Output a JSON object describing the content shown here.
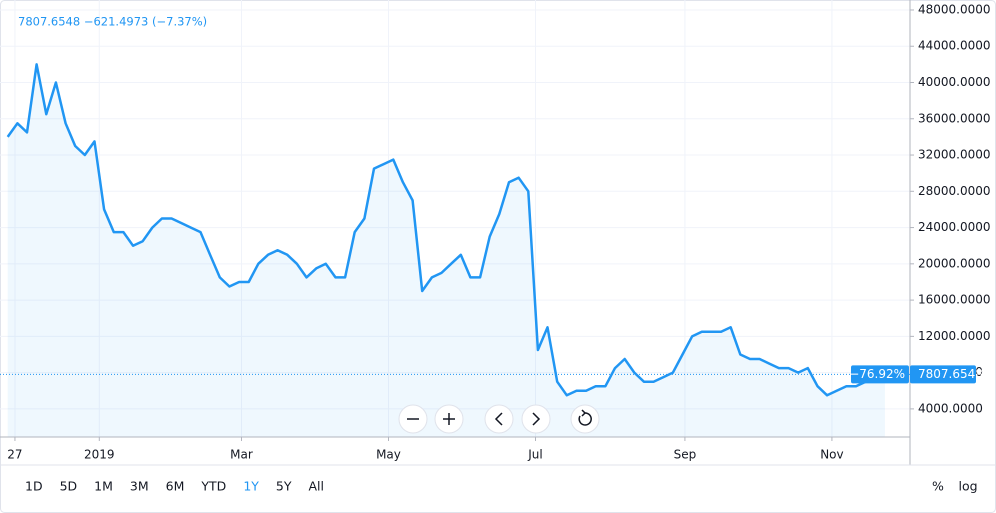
{
  "chart_data": {
    "type": "line",
    "legend": "7807.6548 −621.4973 (−7.37%)",
    "values": [
      34000,
      35500,
      34500,
      42000,
      36500,
      40000,
      35500,
      33000,
      32000,
      33500,
      26000,
      23500,
      23500,
      22000,
      22500,
      24000,
      25000,
      25000,
      24500,
      24000,
      23500,
      21000,
      18500,
      17500,
      18000,
      18000,
      20000,
      21000,
      21500,
      21000,
      20000,
      18500,
      19500,
      20000,
      18500,
      18500,
      23500,
      25000,
      30500,
      31000,
      31500,
      29000,
      27000,
      17000,
      18500,
      19000,
      20000,
      21000,
      18500,
      18500,
      23000,
      25500,
      29000,
      29500,
      28000,
      10500,
      13000,
      7000,
      5500,
      6000,
      6000,
      6500,
      6500,
      8500,
      9500,
      8000,
      7000,
      7000,
      7500,
      8000,
      10000,
      12000,
      12500,
      12500,
      12500,
      13000,
      10000,
      9500,
      9500,
      9000,
      8500,
      8500,
      8000,
      8500,
      6500,
      5500,
      6000,
      6500,
      6500,
      7000,
      7000,
      7807.6548
    ],
    "color": "#2196f3",
    "change_percent_label": "−76.92%",
    "xlim": [
      -0.8,
      93.6
    ],
    "xticks": [
      {
        "value": 0.75,
        "label": "27"
      },
      {
        "value": 9.5,
        "label": "2019"
      },
      {
        "value": 24.25,
        "label": "Mar"
      },
      {
        "value": 39.5,
        "label": "May"
      },
      {
        "value": 54.75,
        "label": "Jul"
      },
      {
        "value": 70.25,
        "label": "Sep"
      },
      {
        "value": 85.5,
        "label": "Nov"
      }
    ],
    "ylim": [
      900,
      49100
    ],
    "yticks": [
      {
        "value": 4000,
        "label": "4000.0000"
      },
      {
        "value": 8000,
        "label": "8000.0000"
      },
      {
        "value": 12000,
        "label": "12000.0000"
      },
      {
        "value": 16000,
        "label": "16000.0000"
      },
      {
        "value": 20000,
        "label": "20000.0000"
      },
      {
        "value": 24000,
        "label": "24000.0000"
      },
      {
        "value": 28000,
        "label": "28000.0000"
      },
      {
        "value": 32000,
        "label": "32000.0000"
      },
      {
        "value": 36000,
        "label": "36000.0000"
      },
      {
        "value": 40000,
        "label": "40000.0000"
      },
      {
        "value": 44000,
        "label": "44000.0000"
      },
      {
        "value": 48000,
        "label": "48000.0000"
      }
    ],
    "grid": true
  },
  "ui": {
    "ranges": [
      "1D",
      "5D",
      "1M",
      "3M",
      "6M",
      "YTD",
      "1Y",
      "5Y",
      "All"
    ],
    "active_range_index": 6,
    "options": [
      "%",
      "log"
    ]
  }
}
